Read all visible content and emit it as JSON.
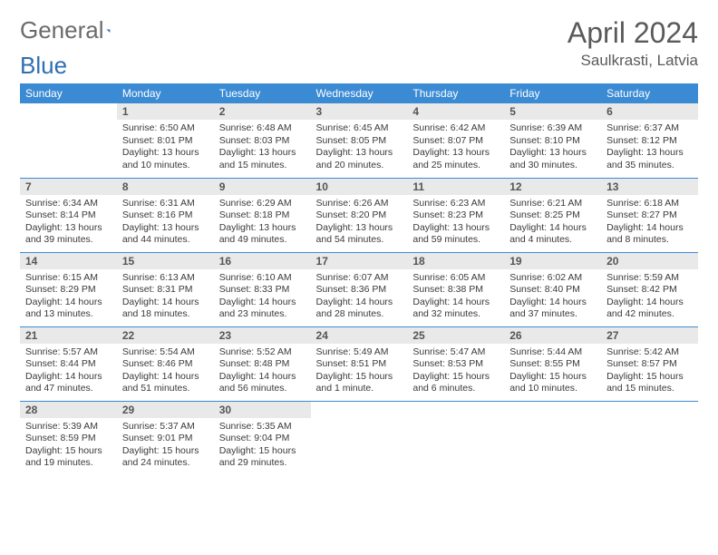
{
  "logo": {
    "text1": "General",
    "text2": "Blue",
    "color1": "#6b6b6b",
    "color2": "#2f6fb0",
    "triangle_color": "#2f6fb0"
  },
  "title": "April 2024",
  "location": "Saulkrasti, Latvia",
  "header_bg": "#3b8bd4",
  "header_text_color": "#ffffff",
  "daynum_bg": "#e9e9e9",
  "border_color": "#3b8bd4",
  "weekdays": [
    "Sunday",
    "Monday",
    "Tuesday",
    "Wednesday",
    "Thursday",
    "Friday",
    "Saturday"
  ],
  "weeks": [
    [
      null,
      {
        "n": "1",
        "sr": "6:50 AM",
        "ss": "8:01 PM",
        "dl": "13 hours and 10 minutes."
      },
      {
        "n": "2",
        "sr": "6:48 AM",
        "ss": "8:03 PM",
        "dl": "13 hours and 15 minutes."
      },
      {
        "n": "3",
        "sr": "6:45 AM",
        "ss": "8:05 PM",
        "dl": "13 hours and 20 minutes."
      },
      {
        "n": "4",
        "sr": "6:42 AM",
        "ss": "8:07 PM",
        "dl": "13 hours and 25 minutes."
      },
      {
        "n": "5",
        "sr": "6:39 AM",
        "ss": "8:10 PM",
        "dl": "13 hours and 30 minutes."
      },
      {
        "n": "6",
        "sr": "6:37 AM",
        "ss": "8:12 PM",
        "dl": "13 hours and 35 minutes."
      }
    ],
    [
      {
        "n": "7",
        "sr": "6:34 AM",
        "ss": "8:14 PM",
        "dl": "13 hours and 39 minutes."
      },
      {
        "n": "8",
        "sr": "6:31 AM",
        "ss": "8:16 PM",
        "dl": "13 hours and 44 minutes."
      },
      {
        "n": "9",
        "sr": "6:29 AM",
        "ss": "8:18 PM",
        "dl": "13 hours and 49 minutes."
      },
      {
        "n": "10",
        "sr": "6:26 AM",
        "ss": "8:20 PM",
        "dl": "13 hours and 54 minutes."
      },
      {
        "n": "11",
        "sr": "6:23 AM",
        "ss": "8:23 PM",
        "dl": "13 hours and 59 minutes."
      },
      {
        "n": "12",
        "sr": "6:21 AM",
        "ss": "8:25 PM",
        "dl": "14 hours and 4 minutes."
      },
      {
        "n": "13",
        "sr": "6:18 AM",
        "ss": "8:27 PM",
        "dl": "14 hours and 8 minutes."
      }
    ],
    [
      {
        "n": "14",
        "sr": "6:15 AM",
        "ss": "8:29 PM",
        "dl": "14 hours and 13 minutes."
      },
      {
        "n": "15",
        "sr": "6:13 AM",
        "ss": "8:31 PM",
        "dl": "14 hours and 18 minutes."
      },
      {
        "n": "16",
        "sr": "6:10 AM",
        "ss": "8:33 PM",
        "dl": "14 hours and 23 minutes."
      },
      {
        "n": "17",
        "sr": "6:07 AM",
        "ss": "8:36 PM",
        "dl": "14 hours and 28 minutes."
      },
      {
        "n": "18",
        "sr": "6:05 AM",
        "ss": "8:38 PM",
        "dl": "14 hours and 32 minutes."
      },
      {
        "n": "19",
        "sr": "6:02 AM",
        "ss": "8:40 PM",
        "dl": "14 hours and 37 minutes."
      },
      {
        "n": "20",
        "sr": "5:59 AM",
        "ss": "8:42 PM",
        "dl": "14 hours and 42 minutes."
      }
    ],
    [
      {
        "n": "21",
        "sr": "5:57 AM",
        "ss": "8:44 PM",
        "dl": "14 hours and 47 minutes."
      },
      {
        "n": "22",
        "sr": "5:54 AM",
        "ss": "8:46 PM",
        "dl": "14 hours and 51 minutes."
      },
      {
        "n": "23",
        "sr": "5:52 AM",
        "ss": "8:48 PM",
        "dl": "14 hours and 56 minutes."
      },
      {
        "n": "24",
        "sr": "5:49 AM",
        "ss": "8:51 PM",
        "dl": "15 hours and 1 minute."
      },
      {
        "n": "25",
        "sr": "5:47 AM",
        "ss": "8:53 PM",
        "dl": "15 hours and 6 minutes."
      },
      {
        "n": "26",
        "sr": "5:44 AM",
        "ss": "8:55 PM",
        "dl": "15 hours and 10 minutes."
      },
      {
        "n": "27",
        "sr": "5:42 AM",
        "ss": "8:57 PM",
        "dl": "15 hours and 15 minutes."
      }
    ],
    [
      {
        "n": "28",
        "sr": "5:39 AM",
        "ss": "8:59 PM",
        "dl": "15 hours and 19 minutes."
      },
      {
        "n": "29",
        "sr": "5:37 AM",
        "ss": "9:01 PM",
        "dl": "15 hours and 24 minutes."
      },
      {
        "n": "30",
        "sr": "5:35 AM",
        "ss": "9:04 PM",
        "dl": "15 hours and 29 minutes."
      },
      null,
      null,
      null,
      null
    ]
  ],
  "labels": {
    "sunrise": "Sunrise:",
    "sunset": "Sunset:",
    "daylight": "Daylight:"
  }
}
